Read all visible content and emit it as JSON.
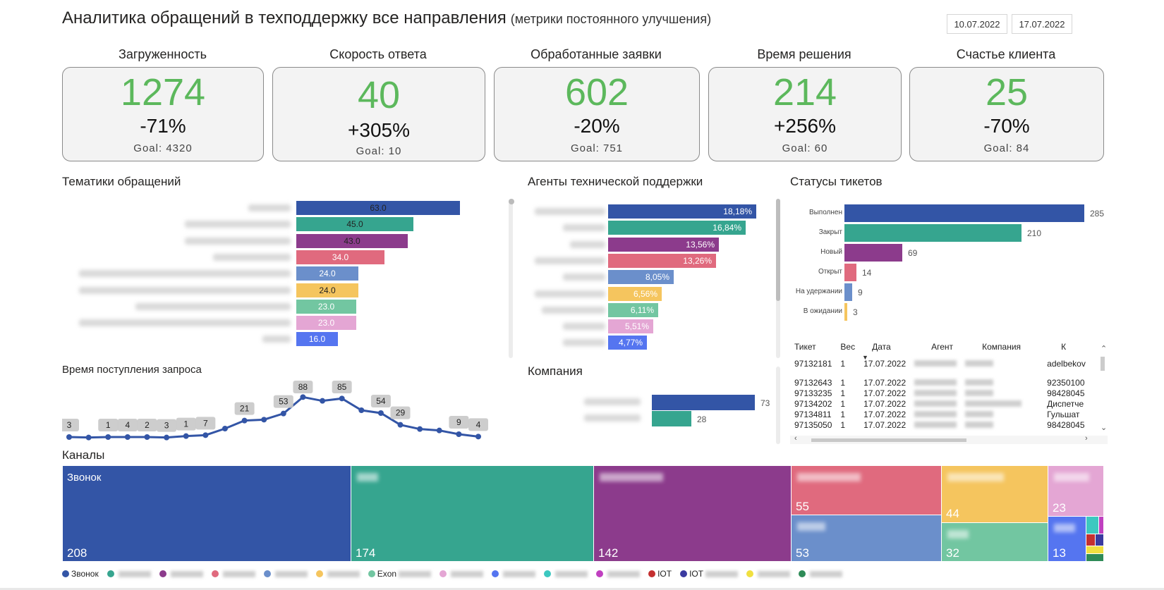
{
  "header": {
    "title": "Аналитика обращений в техподдержку все направления",
    "subtitle": "(метрики постоянного улучшения)",
    "date_from": "10.07.2022",
    "date_to": "17.07.2022"
  },
  "kpis": [
    {
      "label": "Загруженность",
      "value": "1274",
      "delta": "-71%",
      "goal": "Goal: 4320"
    },
    {
      "label": "Скорость ответа",
      "value": "40",
      "delta": "+305%",
      "goal": "Goal: 10"
    },
    {
      "label": "Обработанные заявки",
      "value": "602",
      "delta": "-20%",
      "goal": "Goal: 751"
    },
    {
      "label": "Время решения",
      "value": "214",
      "delta": "+256%",
      "goal": "Goal: 60"
    },
    {
      "label": "Счастье клиента",
      "value": "25",
      "delta": "-70%",
      "goal": "Goal: 84"
    }
  ],
  "colors": [
    "#3355a6",
    "#36a58f",
    "#8c3b8c",
    "#e06a7e",
    "#6b8fcb",
    "#f5c55e",
    "#72c6a1",
    "#e4a6d4",
    "#5575f0"
  ],
  "topics": {
    "title": "Тематики обращений",
    "values": [
      "63.0",
      "45.0",
      "43.0",
      "34.0",
      "24.0",
      "24.0",
      "23.0",
      "23.0",
      "16.0"
    ],
    "numbers": [
      63,
      45,
      43,
      34,
      24,
      24,
      23,
      23,
      16
    ]
  },
  "agents": {
    "title": "Агенты технической поддержки",
    "values": [
      "18,18%",
      "16,84%",
      "13,56%",
      "13,26%",
      "8,05%",
      "6,56%",
      "6,11%",
      "5,51%",
      "4,77%"
    ],
    "numbers": [
      18.18,
      16.84,
      13.56,
      13.26,
      8.05,
      6.56,
      6.11,
      5.51,
      4.77
    ]
  },
  "statuses": {
    "title": "Статусы тикетов",
    "labels": [
      "Выполнен",
      "Закрыт",
      "Новый",
      "Открыт",
      "На удержании",
      "В ожидании"
    ],
    "values": [
      "285",
      "210",
      "69",
      "14",
      "9",
      "3"
    ],
    "numbers": [
      285,
      210,
      69,
      14,
      9,
      3
    ],
    "colors": [
      "#3355a6",
      "#36a58f",
      "#8c3b8c",
      "#e06a7e",
      "#6b8fcb",
      "#f5c55e"
    ]
  },
  "tickets": {
    "columns": [
      "Тикет",
      "Вес",
      "Дата",
      "Агент",
      "Компания",
      "К"
    ],
    "rows": [
      {
        "id": "97132181",
        "w": "1",
        "date": "17.07.2022",
        "k": "adelbekov"
      },
      {
        "id": "97132643",
        "w": "1",
        "date": "17.07.2022",
        "k": "92350100"
      },
      {
        "id": "97133235",
        "w": "1",
        "date": "17.07.2022",
        "k": "98428045"
      },
      {
        "id": "97134202",
        "w": "1",
        "date": "17.07.2022",
        "k": "Диспетче"
      },
      {
        "id": "97134811",
        "w": "1",
        "date": "17.07.2022",
        "k": "Гульшат"
      },
      {
        "id": "97135050",
        "w": "1",
        "date": "17.07.2022",
        "k": "98428045"
      }
    ]
  },
  "time_of_request": {
    "title": "Время поступления запроса",
    "labels": [
      "3",
      "1",
      "4",
      "2",
      "3",
      "1",
      "7",
      "21",
      "53",
      "88",
      "85",
      "54",
      "29",
      "9",
      "4"
    ],
    "points": [
      3,
      2,
      3,
      3,
      3,
      2,
      5,
      7,
      21,
      38,
      40,
      53,
      88,
      80,
      85,
      60,
      54,
      29,
      20,
      17,
      9,
      4
    ]
  },
  "company": {
    "title": "Компания",
    "values": [
      "73",
      "28"
    ],
    "numbers": [
      73,
      28
    ],
    "colors": [
      "#3355a6",
      "#36a58f"
    ]
  },
  "channels": {
    "title": "Каналы",
    "tiles": [
      {
        "label": "Звонок",
        "value": "208",
        "color": "#3355a6"
      },
      {
        "label": "",
        "value": "174",
        "color": "#36a58f"
      },
      {
        "label": "",
        "value": "142",
        "color": "#8c3b8c"
      },
      {
        "label": "",
        "value": "55",
        "color": "#e06a7e"
      },
      {
        "label": "",
        "value": "44",
        "color": "#f5c55e"
      },
      {
        "label": "",
        "value": "23",
        "color": "#e4a6d4"
      },
      {
        "label": "",
        "value": "53",
        "color": "#6b8fcb"
      },
      {
        "label": "",
        "value": "32",
        "color": "#72c6a1"
      },
      {
        "label": "",
        "value": "13",
        "color": "#5575f0"
      }
    ],
    "legend": [
      {
        "label": "Звонок",
        "color": "#3355a6"
      },
      {
        "label": "",
        "color": "#36a58f"
      },
      {
        "label": "",
        "color": "#8c3b8c"
      },
      {
        "label": "",
        "color": "#e06a7e"
      },
      {
        "label": "",
        "color": "#6b8fcb"
      },
      {
        "label": "",
        "color": "#f5c55e"
      },
      {
        "label": "Exon",
        "color": "#72c6a1"
      },
      {
        "label": "",
        "color": "#e4a6d4"
      },
      {
        "label": "",
        "color": "#5575f0"
      },
      {
        "label": "",
        "color": "#3cc8c0"
      },
      {
        "label": "",
        "color": "#c040c0"
      },
      {
        "label": "IOT",
        "color": "#c43030"
      },
      {
        "label": "IOT",
        "color": "#3a3aa0"
      },
      {
        "label": "",
        "color": "#f0e040"
      },
      {
        "label": "",
        "color": "#2e8b57"
      }
    ]
  }
}
